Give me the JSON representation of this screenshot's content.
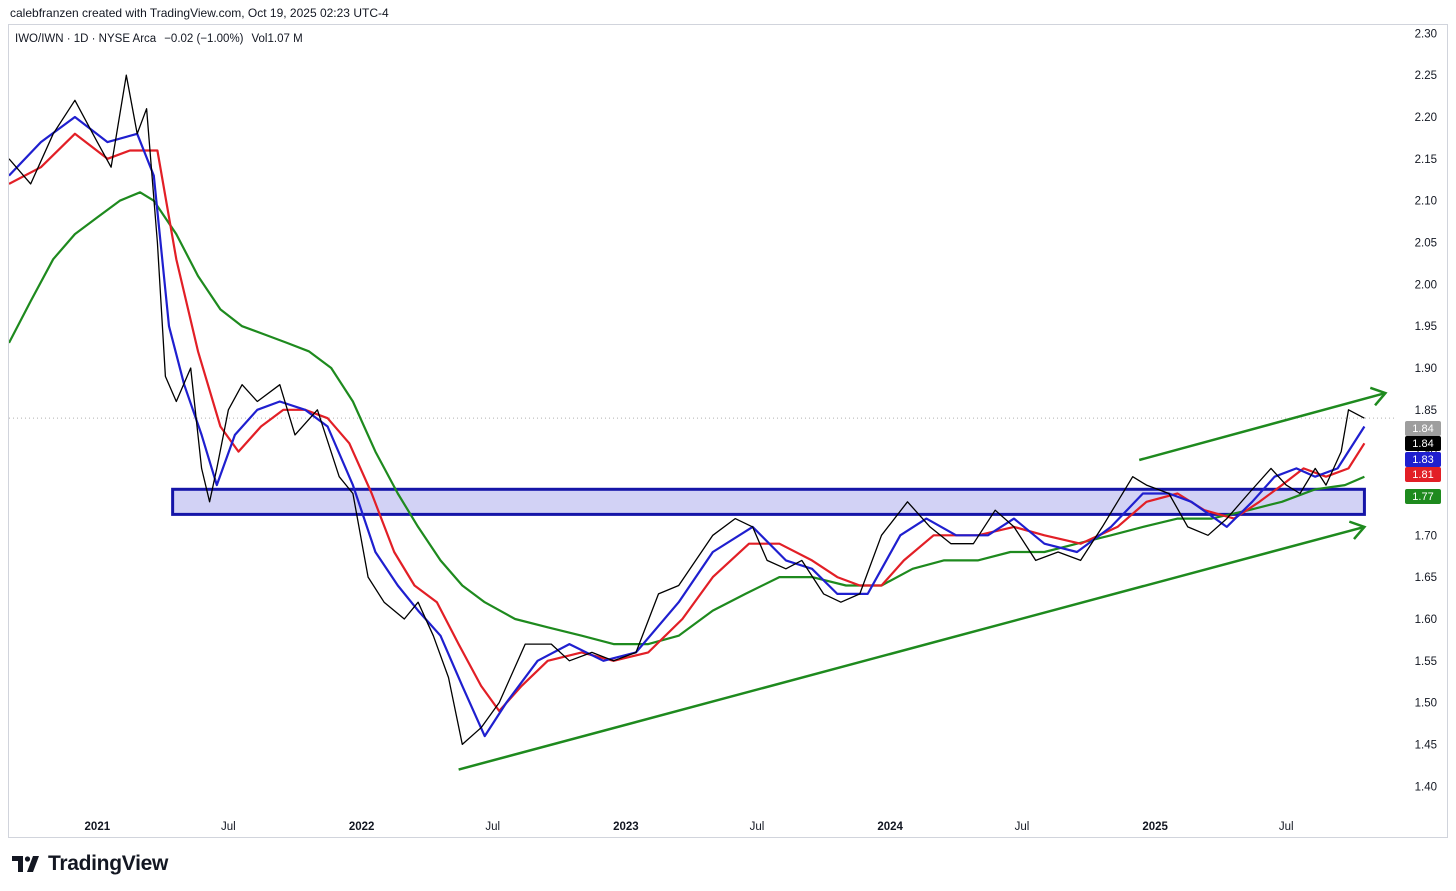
{
  "header": {
    "attribution": "calebfranzen created with TradingView.com, Oct 19, 2025 02:23 UTC-4"
  },
  "footer": {
    "brand": "TradingView",
    "logo_icon": "tradingview-logo-icon"
  },
  "chart_data": {
    "type": "line",
    "title": "IWO/IWN · 1D · NYSE Arca",
    "legend_text": {
      "symbol": "IWO/IWN · 1D · NYSE Arca",
      "change": "−0.02 (−1.00%)",
      "volume": "Vol1.07 M"
    },
    "x_labels": [
      "2021",
      "Jul",
      "2022",
      "Jul",
      "2023",
      "Jul",
      "2024",
      "Jul",
      "2025",
      "Jul"
    ],
    "x_label_dates": [
      "2021-01",
      "2021-07",
      "2022-01",
      "2022-07",
      "2023-01",
      "2023-07",
      "2024-01",
      "2024-07",
      "2025-01",
      "2025-07"
    ],
    "x_range": [
      "2020-09",
      "2025-12"
    ],
    "y_ticks": [
      "1.40",
      "1.45",
      "1.50",
      "1.55",
      "1.60",
      "1.65",
      "1.70",
      "1.75",
      "1.80",
      "1.85",
      "1.90",
      "1.95",
      "2.00",
      "2.05",
      "2.10",
      "2.15",
      "2.20",
      "2.25",
      "2.30"
    ],
    "ylim": [
      1.38,
      2.31
    ],
    "y_axis_side": "right",
    "grid": false,
    "price_labels": [
      {
        "text": "1.84",
        "value": 1.84,
        "color": "#9e9e9e"
      },
      {
        "text": "1.84",
        "value": 1.84,
        "color": "#000000"
      },
      {
        "text": "1.83",
        "value": 1.83,
        "color": "#1f1fcf"
      },
      {
        "text": "1.81",
        "value": 1.81,
        "color": "#e21f26"
      },
      {
        "text": "1.77",
        "value": 1.77,
        "color": "#1e8a1e"
      }
    ],
    "last_price": 1.84,
    "series": [
      {
        "color": "#000000",
        "role": "price",
        "points": [
          [
            "2020-09-01",
            2.15
          ],
          [
            "2020-10-01",
            2.12
          ],
          [
            "2020-11-01",
            2.18
          ],
          [
            "2020-12-01",
            2.22
          ],
          [
            "2021-01-01",
            2.17
          ],
          [
            "2021-01-20",
            2.14
          ],
          [
            "2021-02-10",
            2.25
          ],
          [
            "2021-02-25",
            2.18
          ],
          [
            "2021-03-10",
            2.21
          ],
          [
            "2021-03-25",
            2.05
          ],
          [
            "2021-04-05",
            1.89
          ],
          [
            "2021-04-20",
            1.86
          ],
          [
            "2021-05-10",
            1.9
          ],
          [
            "2021-05-25",
            1.78
          ],
          [
            "2021-06-05",
            1.74
          ],
          [
            "2021-06-15",
            1.78
          ],
          [
            "2021-07-01",
            1.85
          ],
          [
            "2021-07-20",
            1.88
          ],
          [
            "2021-08-10",
            1.86
          ],
          [
            "2021-09-10",
            1.88
          ],
          [
            "2021-10-01",
            1.82
          ],
          [
            "2021-11-01",
            1.85
          ],
          [
            "2021-12-01",
            1.77
          ],
          [
            "2021-12-20",
            1.75
          ],
          [
            "2022-01-10",
            1.65
          ],
          [
            "2022-02-01",
            1.62
          ],
          [
            "2022-03-01",
            1.6
          ],
          [
            "2022-03-20",
            1.62
          ],
          [
            "2022-04-10",
            1.58
          ],
          [
            "2022-05-01",
            1.53
          ],
          [
            "2022-05-20",
            1.45
          ],
          [
            "2022-06-15",
            1.47
          ],
          [
            "2022-07-10",
            1.5
          ],
          [
            "2022-08-15",
            1.57
          ],
          [
            "2022-09-20",
            1.57
          ],
          [
            "2022-10-15",
            1.55
          ],
          [
            "2022-11-15",
            1.56
          ],
          [
            "2022-12-15",
            1.55
          ],
          [
            "2023-01-15",
            1.56
          ],
          [
            "2023-02-15",
            1.63
          ],
          [
            "2023-03-15",
            1.64
          ],
          [
            "2023-05-01",
            1.7
          ],
          [
            "2023-06-01",
            1.72
          ],
          [
            "2023-06-25",
            1.71
          ],
          [
            "2023-07-15",
            1.67
          ],
          [
            "2023-08-10",
            1.66
          ],
          [
            "2023-09-01",
            1.67
          ],
          [
            "2023-10-01",
            1.63
          ],
          [
            "2023-10-25",
            1.62
          ],
          [
            "2023-11-20",
            1.63
          ],
          [
            "2023-12-20",
            1.7
          ],
          [
            "2024-01-25",
            1.74
          ],
          [
            "2024-02-25",
            1.71
          ],
          [
            "2024-03-25",
            1.69
          ],
          [
            "2024-04-25",
            1.69
          ],
          [
            "2024-05-25",
            1.73
          ],
          [
            "2024-06-20",
            1.71
          ],
          [
            "2024-07-20",
            1.67
          ],
          [
            "2024-08-20",
            1.68
          ],
          [
            "2024-09-20",
            1.67
          ],
          [
            "2024-10-20",
            1.71
          ],
          [
            "2024-11-10",
            1.74
          ],
          [
            "2024-12-01",
            1.77
          ],
          [
            "2024-12-20",
            1.76
          ],
          [
            "2025-01-20",
            1.75
          ],
          [
            "2025-02-15",
            1.71
          ],
          [
            "2025-03-15",
            1.7
          ],
          [
            "2025-04-10",
            1.72
          ],
          [
            "2025-05-10",
            1.75
          ],
          [
            "2025-06-10",
            1.78
          ],
          [
            "2025-07-01",
            1.76
          ],
          [
            "2025-07-20",
            1.75
          ],
          [
            "2025-08-10",
            1.78
          ],
          [
            "2025-08-25",
            1.76
          ],
          [
            "2025-09-15",
            1.8
          ],
          [
            "2025-09-25",
            1.85
          ],
          [
            "2025-10-17",
            1.84
          ]
        ]
      },
      {
        "color": "#1f1fcf",
        "role": "moving-average-fast",
        "points": [
          [
            "2020-09-01",
            2.13
          ],
          [
            "2020-10-15",
            2.17
          ],
          [
            "2020-12-01",
            2.2
          ],
          [
            "2021-01-15",
            2.17
          ],
          [
            "2021-02-25",
            2.18
          ],
          [
            "2021-03-20",
            2.13
          ],
          [
            "2021-04-10",
            1.95
          ],
          [
            "2021-05-01",
            1.88
          ],
          [
            "2021-05-25",
            1.82
          ],
          [
            "2021-06-15",
            1.76
          ],
          [
            "2021-07-10",
            1.82
          ],
          [
            "2021-08-10",
            1.85
          ],
          [
            "2021-09-10",
            1.86
          ],
          [
            "2021-10-15",
            1.85
          ],
          [
            "2021-11-15",
            1.83
          ],
          [
            "2021-12-20",
            1.76
          ],
          [
            "2022-01-20",
            1.68
          ],
          [
            "2022-02-20",
            1.64
          ],
          [
            "2022-03-20",
            1.61
          ],
          [
            "2022-04-20",
            1.58
          ],
          [
            "2022-05-20",
            1.52
          ],
          [
            "2022-06-20",
            1.46
          ],
          [
            "2022-07-20",
            1.5
          ],
          [
            "2022-09-01",
            1.55
          ],
          [
            "2022-10-15",
            1.57
          ],
          [
            "2022-12-01",
            1.55
          ],
          [
            "2023-01-15",
            1.56
          ],
          [
            "2023-03-15",
            1.62
          ],
          [
            "2023-05-01",
            1.68
          ],
          [
            "2023-06-25",
            1.71
          ],
          [
            "2023-08-10",
            1.67
          ],
          [
            "2023-09-15",
            1.66
          ],
          [
            "2023-10-20",
            1.63
          ],
          [
            "2023-12-01",
            1.63
          ],
          [
            "2024-01-15",
            1.7
          ],
          [
            "2024-02-20",
            1.72
          ],
          [
            "2024-04-01",
            1.7
          ],
          [
            "2024-05-15",
            1.7
          ],
          [
            "2024-06-20",
            1.72
          ],
          [
            "2024-08-01",
            1.69
          ],
          [
            "2024-09-15",
            1.68
          ],
          [
            "2024-11-01",
            1.71
          ],
          [
            "2024-12-15",
            1.75
          ],
          [
            "2025-01-20",
            1.75
          ],
          [
            "2025-02-20",
            1.74
          ],
          [
            "2025-04-10",
            1.71
          ],
          [
            "2025-05-15",
            1.74
          ],
          [
            "2025-06-15",
            1.77
          ],
          [
            "2025-07-15",
            1.78
          ],
          [
            "2025-08-10",
            1.77
          ],
          [
            "2025-09-10",
            1.78
          ],
          [
            "2025-10-17",
            1.83
          ]
        ]
      },
      {
        "color": "#e21f26",
        "role": "moving-average-medium",
        "points": [
          [
            "2020-09-01",
            2.12
          ],
          [
            "2020-10-15",
            2.14
          ],
          [
            "2020-12-01",
            2.18
          ],
          [
            "2021-01-15",
            2.15
          ],
          [
            "2021-02-15",
            2.16
          ],
          [
            "2021-03-25",
            2.16
          ],
          [
            "2021-04-20",
            2.03
          ],
          [
            "2021-05-20",
            1.92
          ],
          [
            "2021-06-20",
            1.83
          ],
          [
            "2021-07-15",
            1.8
          ],
          [
            "2021-08-15",
            1.83
          ],
          [
            "2021-09-15",
            1.85
          ],
          [
            "2021-10-15",
            1.85
          ],
          [
            "2021-11-15",
            1.84
          ],
          [
            "2021-12-15",
            1.81
          ],
          [
            "2022-01-15",
            1.75
          ],
          [
            "2022-02-15",
            1.68
          ],
          [
            "2022-03-15",
            1.64
          ],
          [
            "2022-04-15",
            1.62
          ],
          [
            "2022-05-15",
            1.57
          ],
          [
            "2022-06-15",
            1.52
          ],
          [
            "2022-07-10",
            1.49
          ],
          [
            "2022-08-10",
            1.52
          ],
          [
            "2022-09-15",
            1.55
          ],
          [
            "2022-11-01",
            1.56
          ],
          [
            "2022-12-15",
            1.55
          ],
          [
            "2023-02-01",
            1.56
          ],
          [
            "2023-03-20",
            1.6
          ],
          [
            "2023-05-01",
            1.65
          ],
          [
            "2023-06-20",
            1.69
          ],
          [
            "2023-08-01",
            1.69
          ],
          [
            "2023-09-15",
            1.67
          ],
          [
            "2023-10-20",
            1.65
          ],
          [
            "2023-11-20",
            1.64
          ],
          [
            "2023-12-20",
            1.64
          ],
          [
            "2024-01-20",
            1.67
          ],
          [
            "2024-03-01",
            1.7
          ],
          [
            "2024-05-01",
            1.7
          ],
          [
            "2024-06-20",
            1.71
          ],
          [
            "2024-08-01",
            1.7
          ],
          [
            "2024-09-20",
            1.69
          ],
          [
            "2024-11-10",
            1.71
          ],
          [
            "2024-12-20",
            1.74
          ],
          [
            "2025-02-01",
            1.75
          ],
          [
            "2025-03-10",
            1.73
          ],
          [
            "2025-04-20",
            1.72
          ],
          [
            "2025-05-25",
            1.74
          ],
          [
            "2025-06-25",
            1.76
          ],
          [
            "2025-07-25",
            1.78
          ],
          [
            "2025-08-25",
            1.77
          ],
          [
            "2025-09-25",
            1.78
          ],
          [
            "2025-10-17",
            1.81
          ]
        ]
      },
      {
        "color": "#1e8a1e",
        "role": "moving-average-slow",
        "points": [
          [
            "2020-09-01",
            1.93
          ],
          [
            "2020-10-01",
            1.98
          ],
          [
            "2020-11-01",
            2.03
          ],
          [
            "2020-12-01",
            2.06
          ],
          [
            "2021-01-01",
            2.08
          ],
          [
            "2021-02-01",
            2.1
          ],
          [
            "2021-03-01",
            2.11
          ],
          [
            "2021-03-20",
            2.1
          ],
          [
            "2021-04-20",
            2.06
          ],
          [
            "2021-05-20",
            2.01
          ],
          [
            "2021-06-20",
            1.97
          ],
          [
            "2021-07-20",
            1.95
          ],
          [
            "2021-08-20",
            1.94
          ],
          [
            "2021-09-20",
            1.93
          ],
          [
            "2021-10-20",
            1.92
          ],
          [
            "2021-11-20",
            1.9
          ],
          [
            "2021-12-20",
            1.86
          ],
          [
            "2022-01-20",
            1.8
          ],
          [
            "2022-02-20",
            1.75
          ],
          [
            "2022-03-20",
            1.71
          ],
          [
            "2022-04-20",
            1.67
          ],
          [
            "2022-05-20",
            1.64
          ],
          [
            "2022-06-20",
            1.62
          ],
          [
            "2022-08-01",
            1.6
          ],
          [
            "2022-09-15",
            1.59
          ],
          [
            "2022-11-01",
            1.58
          ],
          [
            "2022-12-15",
            1.57
          ],
          [
            "2023-02-01",
            1.57
          ],
          [
            "2023-03-15",
            1.58
          ],
          [
            "2023-05-01",
            1.61
          ],
          [
            "2023-06-15",
            1.63
          ],
          [
            "2023-08-01",
            1.65
          ],
          [
            "2023-09-15",
            1.65
          ],
          [
            "2023-11-01",
            1.64
          ],
          [
            "2023-12-20",
            1.64
          ],
          [
            "2024-02-01",
            1.66
          ],
          [
            "2024-03-15",
            1.67
          ],
          [
            "2024-05-01",
            1.67
          ],
          [
            "2024-06-15",
            1.68
          ],
          [
            "2024-08-01",
            1.68
          ],
          [
            "2024-09-15",
            1.69
          ],
          [
            "2024-11-01",
            1.7
          ],
          [
            "2024-12-15",
            1.71
          ],
          [
            "2025-02-01",
            1.72
          ],
          [
            "2025-03-20",
            1.72
          ],
          [
            "2025-05-10",
            1.73
          ],
          [
            "2025-06-25",
            1.74
          ],
          [
            "2025-08-10",
            1.755
          ],
          [
            "2025-09-20",
            1.76
          ],
          [
            "2025-10-17",
            1.77
          ]
        ]
      }
    ],
    "annotations": [
      {
        "type": "rectangle",
        "label": "",
        "x_start": "2021-04-15",
        "x_end": "2025-10-17",
        "y_low": 1.725,
        "y_high": 1.755,
        "fill": "#d2d2f5",
        "stroke": "#1515a8"
      },
      {
        "type": "trendline",
        "label": "",
        "from": [
          "2022-05-15",
          1.42
        ],
        "to": [
          "2025-10-17",
          1.71
        ],
        "color": "#1e8a1e",
        "arrow": true
      },
      {
        "type": "trendline",
        "label": "",
        "from": [
          "2024-12-10",
          1.79
        ],
        "to": [
          "2025-11-15",
          1.87
        ],
        "color": "#1e8a1e",
        "arrow": true
      }
    ],
    "price_line": {
      "value": 1.84,
      "style": "dotted",
      "color": "#b0b0b0"
    }
  }
}
